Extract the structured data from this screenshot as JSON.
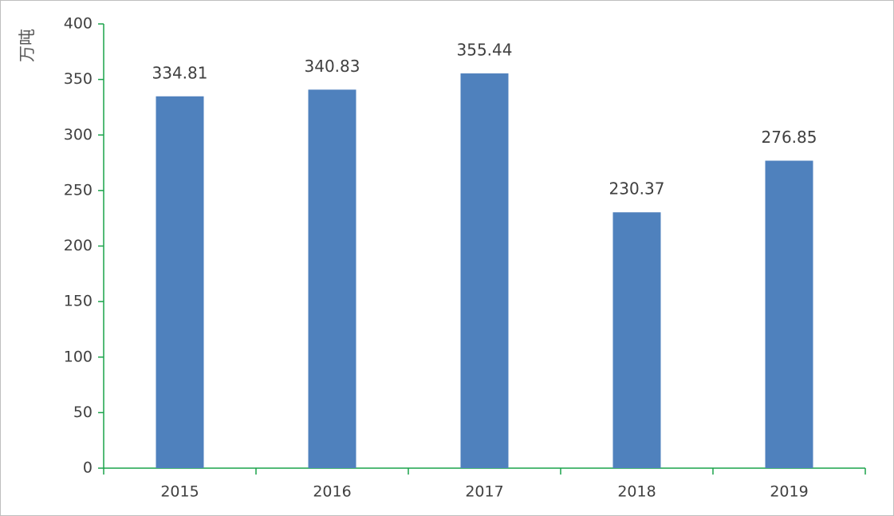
{
  "chart_data": {
    "type": "bar",
    "y_label": "万吨",
    "categories": [
      "2015",
      "2016",
      "2017",
      "2018",
      "2019"
    ],
    "values": [
      334.81,
      340.83,
      355.44,
      230.37,
      276.85
    ],
    "color": "#4f81bd",
    "ylim": [
      0,
      400
    ],
    "yticks": [
      0,
      50,
      100,
      150,
      200,
      250,
      300,
      350,
      400
    ],
    "grid": false,
    "data_labels": true
  }
}
